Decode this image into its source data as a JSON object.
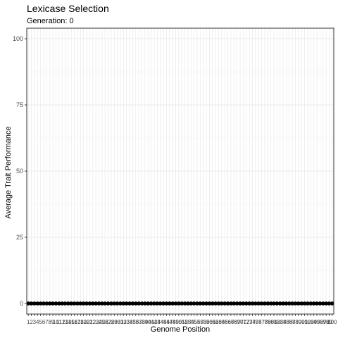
{
  "chart_data": {
    "type": "scatter",
    "title": "Lexicase Selection",
    "subtitle": "Generation: 0",
    "xlabel": "Genome Position",
    "ylabel": "Average Trait Performance",
    "x_range": [
      1,
      100
    ],
    "ylim": [
      -4,
      104
    ],
    "yticks": [
      0,
      25,
      50,
      75,
      100
    ],
    "grid": true,
    "legend": "none",
    "point_color": "#000000",
    "panel_border_color": "#333333",
    "grid_color": "#ebebeb",
    "series": [
      {
        "y": [
          0,
          0,
          0,
          0,
          0,
          0,
          0,
          0,
          0,
          0,
          0,
          0,
          0,
          0,
          0,
          0,
          0,
          0,
          0,
          0,
          0,
          0,
          0,
          0,
          0,
          0,
          0,
          0,
          0,
          0,
          0,
          0,
          0,
          0,
          0,
          0,
          0,
          0,
          0,
          0,
          0,
          0,
          0,
          0,
          0,
          0,
          0,
          0,
          0,
          0,
          0,
          0,
          0,
          0,
          0,
          0,
          0,
          0,
          0,
          0,
          0,
          0,
          0,
          0,
          0,
          0,
          0,
          0,
          0,
          0,
          0,
          0,
          0,
          0,
          0,
          0,
          0,
          0,
          0,
          0,
          0,
          0,
          0,
          0,
          0,
          0,
          0,
          0,
          0,
          0,
          0,
          0,
          0,
          0,
          0,
          0,
          0,
          0,
          0,
          0
        ]
      }
    ]
  }
}
